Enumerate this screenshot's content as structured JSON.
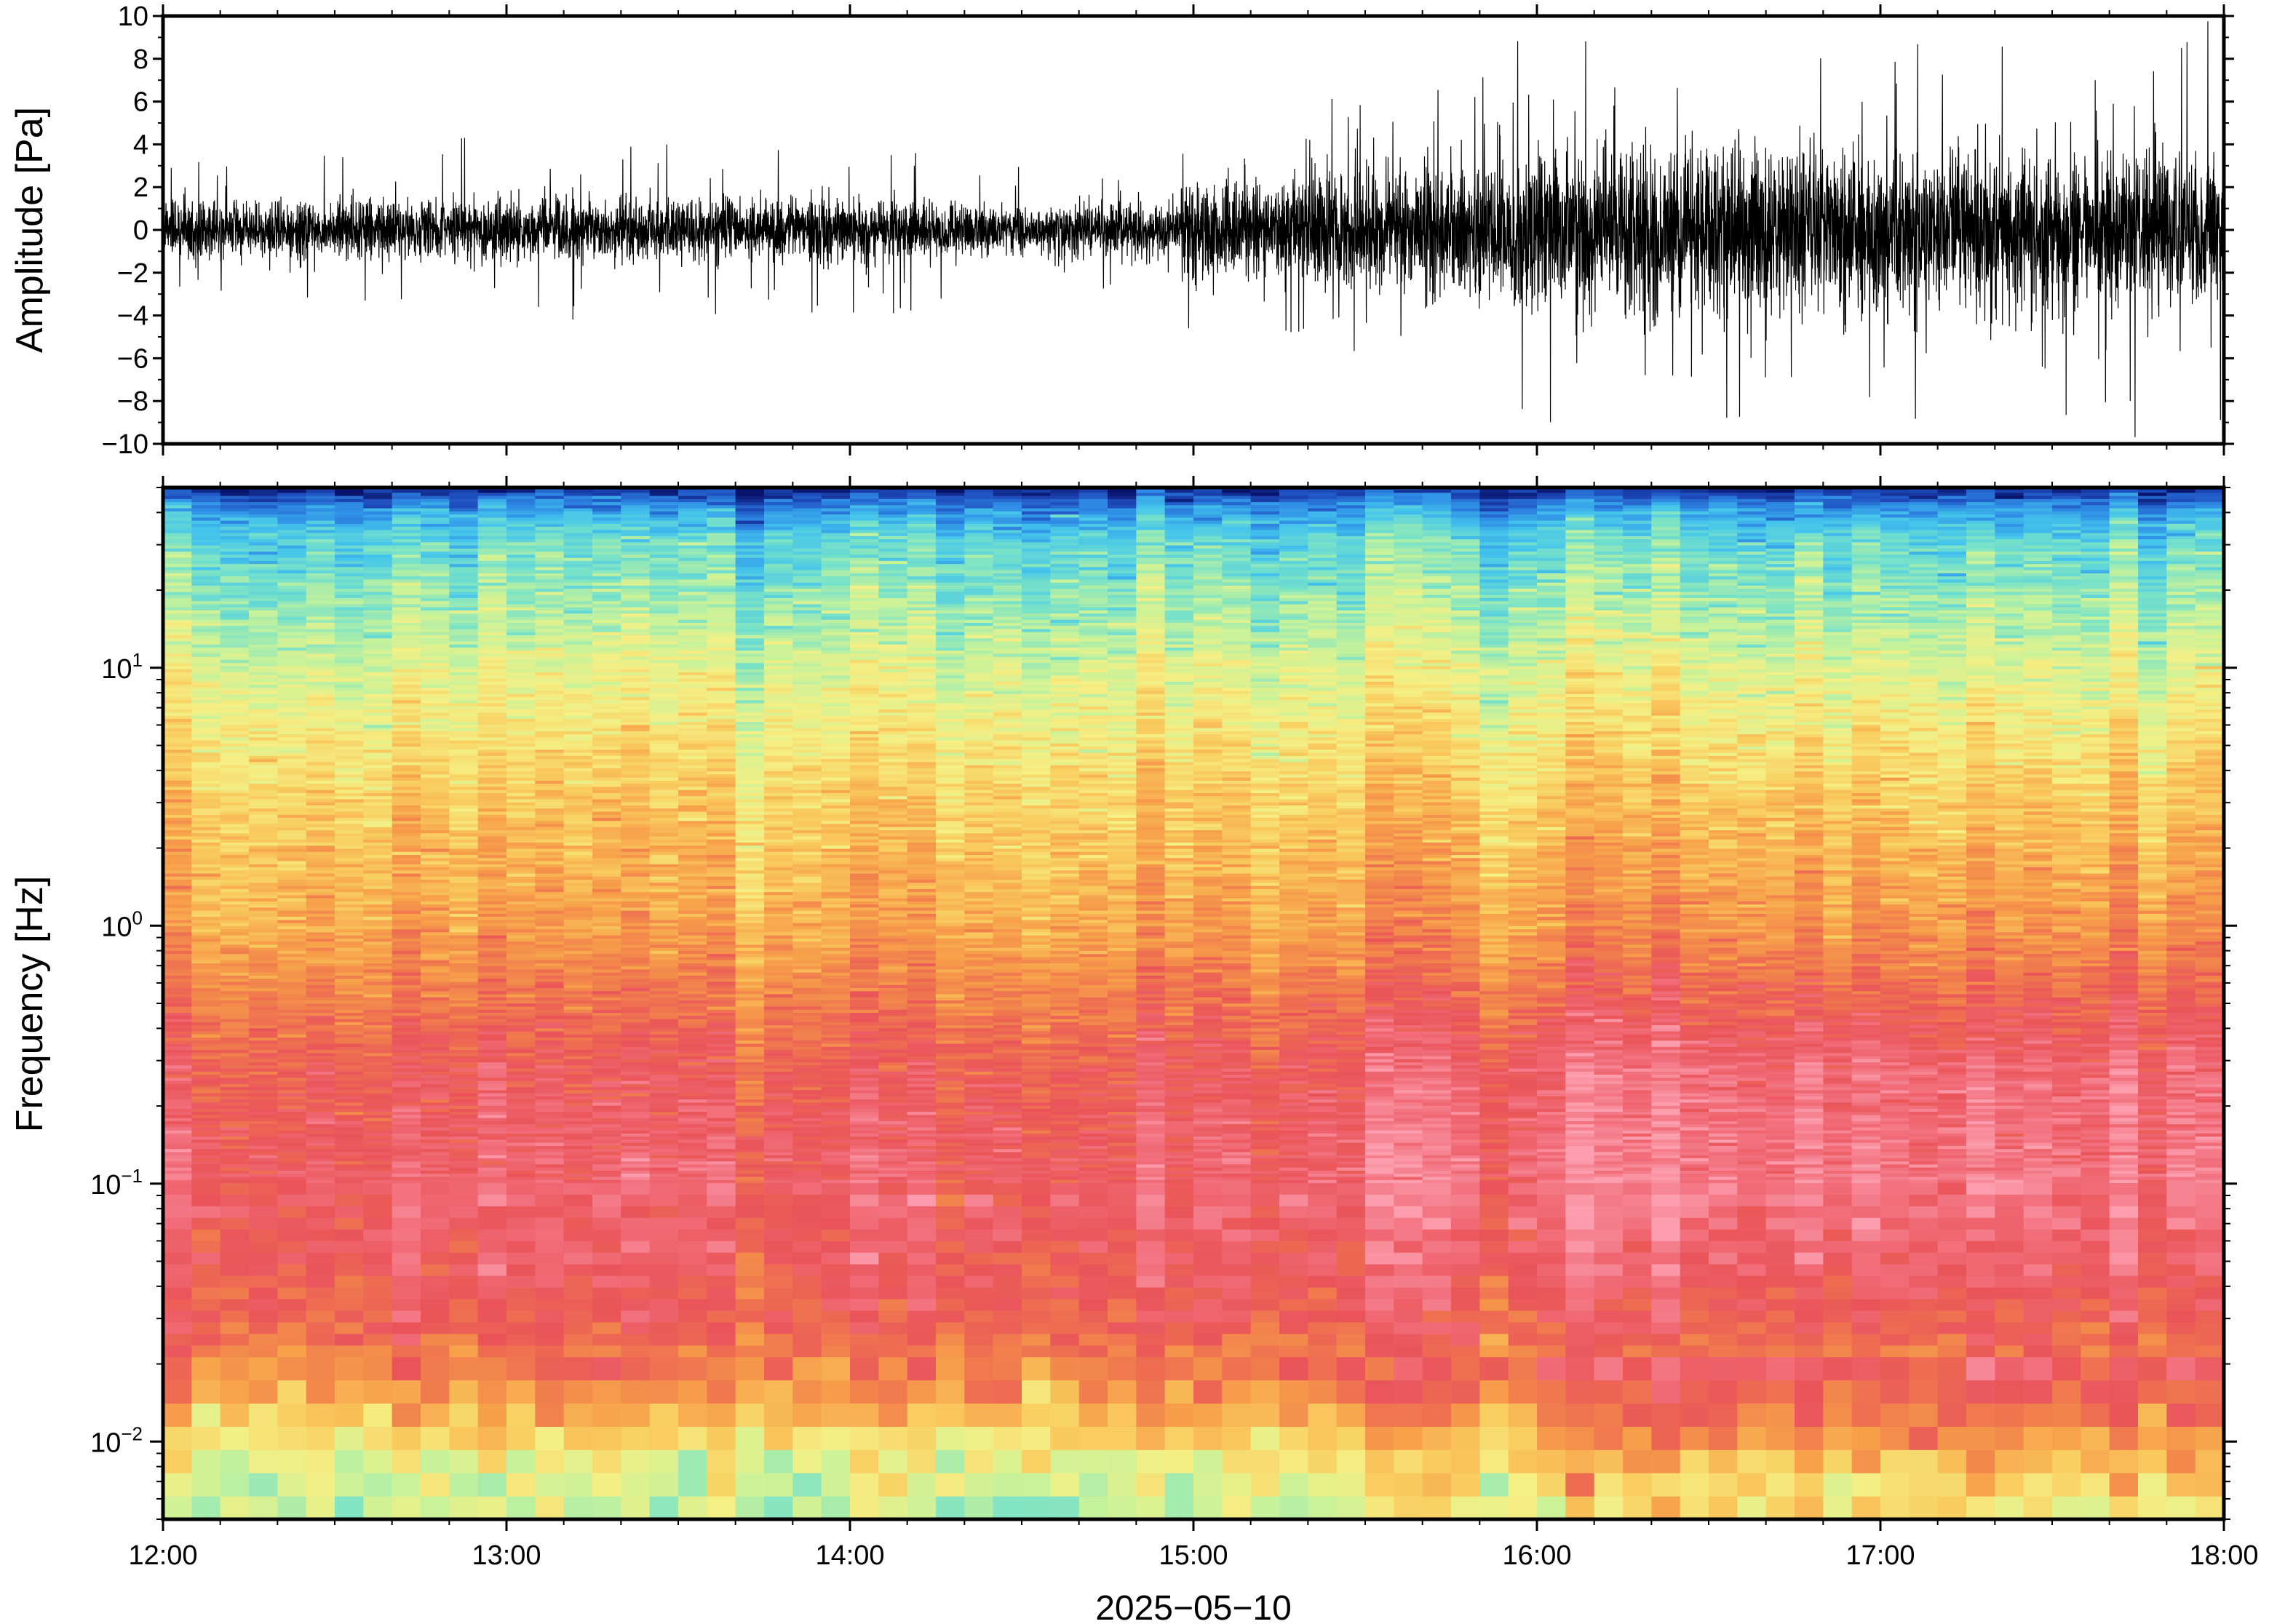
{
  "chart_data": [
    {
      "type": "line",
      "panel": "waveform",
      "ylabel": "Amplitude [Pa]",
      "ylim": [
        -10,
        10
      ],
      "yticks": [
        10,
        8,
        6,
        4,
        2,
        0,
        -2,
        -4,
        -6,
        -8,
        -10
      ],
      "ytick_labels": [
        "10",
        "8",
        "6",
        "4",
        "2",
        "0",
        "−2",
        "−4",
        "−6",
        "−8",
        "−10"
      ],
      "xlim": [
        "12:00",
        "18:00"
      ],
      "line_color": "#000000",
      "envelope": {
        "hours": [
          12.0,
          12.5,
          13.0,
          13.5,
          14.0,
          14.5,
          14.9,
          15.0,
          15.5,
          16.0,
          16.5,
          17.0,
          17.5,
          18.0
        ],
        "typical_abs_amplitude": [
          1.2,
          1.2,
          1.3,
          1.2,
          1.3,
          1.0,
          1.1,
          2.0,
          2.4,
          3.2,
          3.6,
          3.4,
          3.2,
          3.0
        ],
        "peak_abs_amplitude": [
          3.5,
          3.8,
          4.5,
          4.0,
          4.3,
          3.0,
          3.0,
          5.0,
          6.5,
          10,
          10,
          9.5,
          9.8,
          10
        ]
      }
    },
    {
      "type": "heatmap",
      "panel": "spectrogram",
      "ylabel": "Frequency [Hz]",
      "yscale": "log",
      "ylim": [
        0.005,
        50
      ],
      "yticks": [
        0.01,
        0.1,
        1,
        10
      ],
      "ytick_labels": [
        {
          "base": "10",
          "exp": "−2"
        },
        {
          "base": "10",
          "exp": "−1"
        },
        {
          "base": "10",
          "exp": "0"
        },
        {
          "base": "10",
          "exp": "1"
        }
      ],
      "xlim": [
        "12:00",
        "18:00"
      ],
      "xtick_labels": [
        "12:00",
        "13:00",
        "14:00",
        "15:00",
        "16:00",
        "17:00",
        "18:00"
      ],
      "xlabel": "2025−05−10",
      "colormap": [
        "#08136b",
        "#1f4fc0",
        "#2f8fe6",
        "#44c4ec",
        "#78e2c8",
        "#c7f29a",
        "#f5ef84",
        "#f9cc5f",
        "#f79f4a",
        "#f07a4e",
        "#ea5459",
        "#f2707d",
        "#fc9eae"
      ],
      "levels_description_by_frequency_hz": {
        "40": "blue",
        "10": "cyan",
        "3": "yellow-green",
        "1": "yellow-orange",
        "0.3": "red",
        "0.1": "red-pink",
        "0.03": "orange",
        "0.01": "yellow-green",
        "0.006": "cyan-green"
      }
    }
  ]
}
